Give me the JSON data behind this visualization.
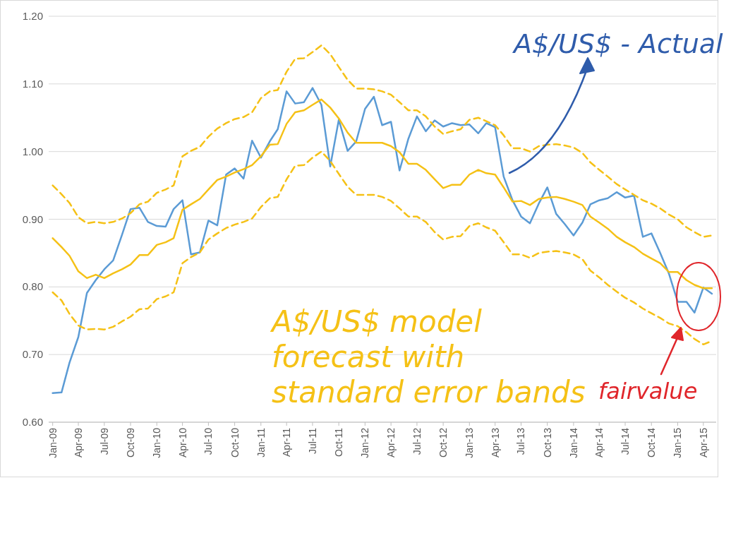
{
  "chart_data": {
    "type": "line",
    "x": [
      "2009-01",
      "2009-02",
      "2009-03",
      "2009-04",
      "2009-05",
      "2009-06",
      "2009-07",
      "2009-08",
      "2009-09",
      "2009-10",
      "2009-11",
      "2009-12",
      "2010-01",
      "2010-02",
      "2010-03",
      "2010-04",
      "2010-05",
      "2010-06",
      "2010-07",
      "2010-08",
      "2010-09",
      "2010-10",
      "2010-11",
      "2010-12",
      "2011-01",
      "2011-02",
      "2011-03",
      "2011-04",
      "2011-05",
      "2011-06",
      "2011-07",
      "2011-08",
      "2011-09",
      "2011-10",
      "2011-11",
      "2011-12",
      "2012-01",
      "2012-02",
      "2012-03",
      "2012-04",
      "2012-05",
      "2012-06",
      "2012-07",
      "2012-08",
      "2012-09",
      "2012-10",
      "2012-11",
      "2012-12",
      "2013-01",
      "2013-02",
      "2013-03",
      "2013-04",
      "2013-05",
      "2013-06",
      "2013-07",
      "2013-08",
      "2013-09",
      "2013-10",
      "2013-11",
      "2013-12",
      "2014-01",
      "2014-02",
      "2014-03",
      "2014-04",
      "2014-05",
      "2014-06",
      "2014-07",
      "2014-08",
      "2014-09",
      "2014-10",
      "2014-11",
      "2014-12",
      "2015-01",
      "2015-02",
      "2015-03",
      "2015-04",
      "2015-05"
    ],
    "series": [
      {
        "color": "#5b9bd5",
        "line_style": "solid",
        "values": [
          0.643,
          0.644,
          0.688,
          0.726,
          0.791,
          0.81,
          0.826,
          0.839,
          0.877,
          0.915,
          0.917,
          0.896,
          0.89,
          0.889,
          0.915,
          0.928,
          0.848,
          0.851,
          0.898,
          0.891,
          0.966,
          0.975,
          0.96,
          1.016,
          0.991,
          1.015,
          1.033,
          1.089,
          1.071,
          1.073,
          1.094,
          1.069,
          0.978,
          1.047,
          1.001,
          1.015,
          1.063,
          1.081,
          1.039,
          1.044,
          0.972,
          1.019,
          1.052,
          1.03,
          1.046,
          1.037,
          1.042,
          1.039,
          1.04,
          1.027,
          1.042,
          1.036,
          0.963,
          0.928,
          0.904,
          0.894,
          0.923,
          0.947,
          0.908,
          0.893,
          0.876,
          0.895,
          0.922,
          0.928,
          0.931,
          0.94,
          0.932,
          0.935,
          0.874,
          0.879,
          0.85,
          0.82,
          0.778,
          0.778,
          0.762,
          0.799,
          0.79
        ]
      },
      {
        "color": "#f5c116",
        "line_style": "solid",
        "values": [
          0.872,
          0.859,
          0.846,
          0.823,
          0.813,
          0.818,
          0.813,
          0.82,
          0.826,
          0.833,
          0.847,
          0.847,
          0.862,
          0.866,
          0.872,
          0.914,
          0.922,
          0.93,
          0.944,
          0.958,
          0.963,
          0.969,
          0.974,
          0.98,
          0.993,
          1.01,
          1.011,
          1.041,
          1.058,
          1.061,
          1.069,
          1.077,
          1.065,
          1.049,
          1.028,
          1.013,
          1.013,
          1.013,
          1.013,
          1.008,
          0.999,
          0.982,
          0.982,
          0.973,
          0.959,
          0.946,
          0.951,
          0.951,
          0.966,
          0.973,
          0.968,
          0.966,
          0.947,
          0.926,
          0.927,
          0.921,
          0.93,
          0.932,
          0.933,
          0.93,
          0.926,
          0.921,
          0.904,
          0.895,
          0.886,
          0.874,
          0.866,
          0.859,
          0.849,
          0.842,
          0.835,
          0.822,
          0.822,
          0.81,
          0.803,
          0.798,
          0.798
        ]
      },
      {
        "color": "#f5c116",
        "line_style": "dashed",
        "values": [
          0.95,
          0.937,
          0.924,
          0.903,
          0.894,
          0.896,
          0.894,
          0.896,
          0.901,
          0.909,
          0.922,
          0.926,
          0.939,
          0.944,
          0.95,
          0.993,
          1.001,
          1.007,
          1.022,
          1.034,
          1.042,
          1.048,
          1.051,
          1.058,
          1.079,
          1.089,
          1.091,
          1.118,
          1.137,
          1.138,
          1.147,
          1.157,
          1.144,
          1.125,
          1.106,
          1.093,
          1.093,
          1.092,
          1.089,
          1.084,
          1.073,
          1.061,
          1.061,
          1.052,
          1.037,
          1.026,
          1.03,
          1.033,
          1.047,
          1.05,
          1.045,
          1.039,
          1.024,
          1.005,
          1.005,
          1.0,
          1.008,
          1.01,
          1.011,
          1.009,
          1.006,
          0.998,
          0.984,
          0.973,
          0.963,
          0.952,
          0.944,
          0.936,
          0.928,
          0.923,
          0.916,
          0.907,
          0.9,
          0.888,
          0.881,
          0.874,
          0.876
        ]
      },
      {
        "color": "#f5c116",
        "line_style": "dashed",
        "values": [
          0.792,
          0.78,
          0.76,
          0.743,
          0.737,
          0.738,
          0.737,
          0.741,
          0.749,
          0.756,
          0.767,
          0.768,
          0.782,
          0.786,
          0.792,
          0.835,
          0.844,
          0.851,
          0.87,
          0.879,
          0.887,
          0.892,
          0.896,
          0.901,
          0.918,
          0.931,
          0.933,
          0.959,
          0.979,
          0.98,
          0.991,
          1.0,
          0.986,
          0.967,
          0.948,
          0.936,
          0.936,
          0.936,
          0.933,
          0.927,
          0.916,
          0.904,
          0.904,
          0.896,
          0.881,
          0.87,
          0.874,
          0.875,
          0.89,
          0.894,
          0.888,
          0.883,
          0.866,
          0.848,
          0.848,
          0.843,
          0.85,
          0.852,
          0.853,
          0.851,
          0.848,
          0.841,
          0.824,
          0.814,
          0.803,
          0.793,
          0.784,
          0.777,
          0.768,
          0.761,
          0.754,
          0.746,
          0.742,
          0.733,
          0.723,
          0.715,
          0.72
        ]
      }
    ],
    "xlim": [
      "2008-12-18",
      "2015-05-16"
    ],
    "xticks": [
      {
        "value": "2009-01",
        "label": "Jan-09"
      },
      {
        "value": "2009-04",
        "label": "Apr-09"
      },
      {
        "value": "2009-07",
        "label": "Jul-09"
      },
      {
        "value": "2009-10",
        "label": "Oct-09"
      },
      {
        "value": "2010-01",
        "label": "Jan-10"
      },
      {
        "value": "2010-04",
        "label": "Apr-10"
      },
      {
        "value": "2010-07",
        "label": "Jul-10"
      },
      {
        "value": "2010-10",
        "label": "Oct-10"
      },
      {
        "value": "2011-01",
        "label": "Jan-11"
      },
      {
        "value": "2011-04",
        "label": "Apr-11"
      },
      {
        "value": "2011-07",
        "label": "Jul-11"
      },
      {
        "value": "2011-10",
        "label": "Oct-11"
      },
      {
        "value": "2012-01",
        "label": "Jan-12"
      },
      {
        "value": "2012-04",
        "label": "Apr-12"
      },
      {
        "value": "2012-07",
        "label": "Jul-12"
      },
      {
        "value": "2012-10",
        "label": "Oct-12"
      },
      {
        "value": "2013-01",
        "label": "Jan-13"
      },
      {
        "value": "2013-04",
        "label": "Apr-13"
      },
      {
        "value": "2013-07",
        "label": "Jul-13"
      },
      {
        "value": "2013-10",
        "label": "Oct-13"
      },
      {
        "value": "2014-01",
        "label": "Jan-14"
      },
      {
        "value": "2014-04",
        "label": "Apr-14"
      },
      {
        "value": "2014-07",
        "label": "Jul-14"
      },
      {
        "value": "2014-10",
        "label": "Oct-14"
      },
      {
        "value": "2015-01",
        "label": "Jan-15"
      },
      {
        "value": "2015-04",
        "label": "Apr-15"
      }
    ],
    "ylim": [
      0.6,
      1.2
    ],
    "yticks": [
      {
        "value": 0.6,
        "label": "0.60"
      },
      {
        "value": 0.7,
        "label": "0.70"
      },
      {
        "value": 0.8,
        "label": "0.80"
      },
      {
        "value": 0.9,
        "label": "0.90"
      },
      {
        "value": 1.0,
        "label": "1.00"
      },
      {
        "value": 1.1,
        "label": "1.10"
      },
      {
        "value": 1.2,
        "label": "1.20"
      }
    ],
    "grid": "y",
    "marker": "none",
    "annotations": [
      "A$/US$ - Actual",
      "A$/US$ model forecast with standard error bands",
      "fairvalue"
    ]
  }
}
